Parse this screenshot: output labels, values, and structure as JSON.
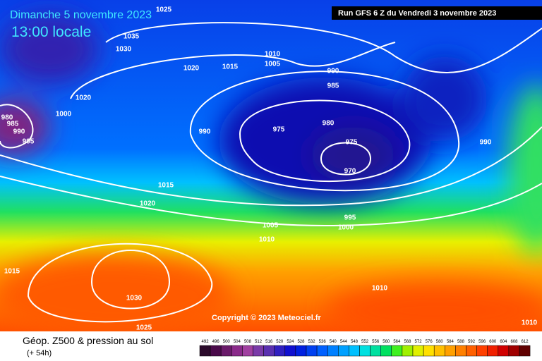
{
  "header": {
    "title": "Dimanche 5 novembre 2023",
    "subtitle": "13:00 locale",
    "run": "Run GFS 6 Z du Vendredi 3 novembre 2023"
  },
  "isobar_labels": [
    "1025",
    "1035",
    "1030",
    "1010",
    "1005",
    "1020",
    "1015",
    "990",
    "985",
    "1020",
    "1000",
    "980",
    "985",
    "990",
    "995",
    "990",
    "975",
    "980",
    "975",
    "970",
    "990",
    "1015",
    "1020",
    "995",
    "1000",
    "1005",
    "1010",
    "1015",
    "1030",
    "1025",
    "1010",
    "1010"
  ],
  "copyright": "Copyright © 2023 Meteociel.fr",
  "footer": {
    "title": "Géop. Z500 & pression au sol",
    "lead": "(+ 54h)"
  },
  "scale": {
    "labels": [
      "492",
      "496",
      "500",
      "504",
      "508",
      "512",
      "516",
      "520",
      "524",
      "528",
      "532",
      "536",
      "540",
      "544",
      "548",
      "552",
      "556",
      "560",
      "564",
      "568",
      "572",
      "576",
      "580",
      "584",
      "588",
      "592",
      "596",
      "600",
      "604",
      "608",
      "612"
    ],
    "colors": [
      "#2a0a2a",
      "#4a0a4a",
      "#6a1a6a",
      "#8a2a8a",
      "#a040a0",
      "#7a3aa8",
      "#5a30b0",
      "#3020c0",
      "#1010d0",
      "#0020e0",
      "#0040f0",
      "#0060ff",
      "#0080ff",
      "#00a0ff",
      "#00c0ff",
      "#00e0e0",
      "#00e0a0",
      "#00e060",
      "#40f020",
      "#a0f000",
      "#e0f000",
      "#ffe000",
      "#ffc000",
      "#ffa000",
      "#ff8000",
      "#ff6000",
      "#ff4000",
      "#f02000",
      "#d00000",
      "#a00000",
      "#600000"
    ]
  }
}
